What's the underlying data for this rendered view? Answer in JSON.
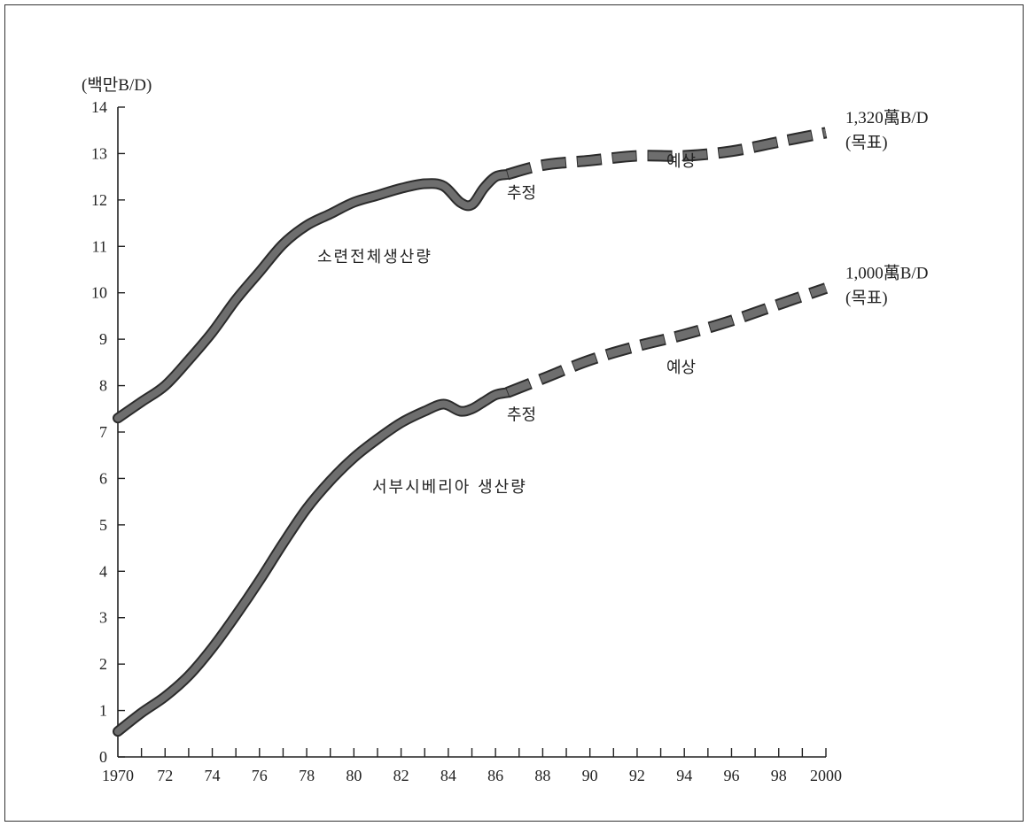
{
  "chart_data": {
    "type": "line",
    "ylabel": "(백만B/D)",
    "xlabel": "",
    "xlim": [
      1970,
      2000
    ],
    "ylim": [
      0,
      14
    ],
    "y_ticks": [
      "0",
      "1",
      "2",
      "3",
      "4",
      "5",
      "6",
      "7",
      "8",
      "9",
      "10",
      "11",
      "12",
      "13",
      "14"
    ],
    "x_ticks": [
      {
        "x": 1970,
        "label": "1970"
      },
      {
        "x": 1972,
        "label": "72"
      },
      {
        "x": 1974,
        "label": "74"
      },
      {
        "x": 1976,
        "label": "76"
      },
      {
        "x": 1978,
        "label": "78"
      },
      {
        "x": 1980,
        "label": "80"
      },
      {
        "x": 1982,
        "label": "82"
      },
      {
        "x": 1984,
        "label": "84"
      },
      {
        "x": 1986,
        "label": "86"
      },
      {
        "x": 1988,
        "label": "88"
      },
      {
        "x": 1990,
        "label": "90"
      },
      {
        "x": 1992,
        "label": "92"
      },
      {
        "x": 1994,
        "label": "94"
      },
      {
        "x": 1996,
        "label": "96"
      },
      {
        "x": 1998,
        "label": "98"
      },
      {
        "x": 2000,
        "label": "2000"
      }
    ],
    "series": [
      {
        "name": "소련전체생산량",
        "actual": {
          "x": [
            1970,
            1971,
            1972,
            1973,
            1974,
            1975,
            1976,
            1977,
            1978,
            1979,
            1980,
            1981,
            1982,
            1983,
            1983.8,
            1984.5,
            1985,
            1985.5,
            1986,
            1986.5
          ],
          "y": [
            7.3,
            7.65,
            8.0,
            8.55,
            9.15,
            9.85,
            10.45,
            11.05,
            11.45,
            11.7,
            11.95,
            12.1,
            12.25,
            12.35,
            12.3,
            11.95,
            11.9,
            12.25,
            12.5,
            12.55
          ]
        },
        "forecast": {
          "x": [
            1986.5,
            1988,
            1990,
            1992,
            1994,
            1996,
            1998,
            2000
          ],
          "y": [
            12.55,
            12.75,
            12.85,
            12.95,
            12.95,
            13.05,
            13.25,
            13.45
          ]
        },
        "labels": {
          "estimate": "추정",
          "forecast": "예상"
        },
        "target": {
          "value": "1,320萬B/D",
          "note": "(목표)"
        }
      },
      {
        "name": "서부시베리아 생산량",
        "actual": {
          "x": [
            1970,
            1971,
            1972,
            1973,
            1974,
            1975,
            1976,
            1977,
            1978,
            1979,
            1980,
            1981,
            1982,
            1983,
            1983.8,
            1984.5,
            1985,
            1985.5,
            1986,
            1986.5
          ],
          "y": [
            0.55,
            0.95,
            1.3,
            1.75,
            2.35,
            3.05,
            3.8,
            4.6,
            5.35,
            5.95,
            6.45,
            6.85,
            7.2,
            7.45,
            7.6,
            7.45,
            7.5,
            7.65,
            7.8,
            7.85
          ]
        },
        "forecast": {
          "x": [
            1986.5,
            1988,
            1990,
            1992,
            1994,
            1996,
            1998,
            2000
          ],
          "y": [
            7.85,
            8.15,
            8.55,
            8.85,
            9.1,
            9.4,
            9.75,
            10.1
          ]
        },
        "labels": {
          "estimate": "추정",
          "forecast": "예상"
        },
        "target": {
          "value": "1,000萬B/D",
          "note": "(목표)"
        }
      }
    ],
    "colors": {
      "line": "#6e6e6e",
      "line_edge": "#2b2b2b",
      "axis": "#222222"
    },
    "grid": false
  }
}
